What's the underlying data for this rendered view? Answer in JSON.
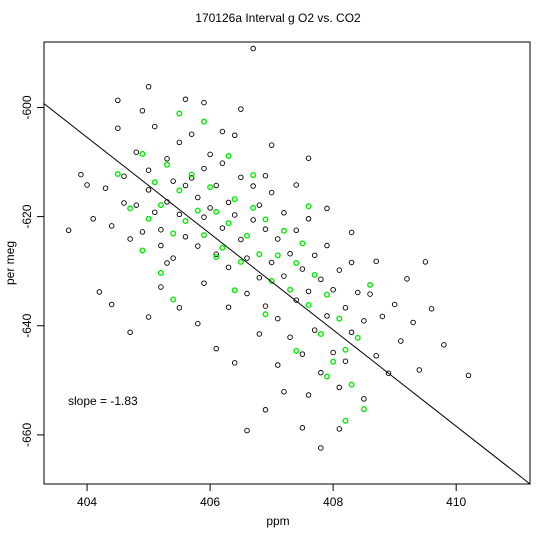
{
  "chart_data": {
    "type": "scatter",
    "title": "170126a   Interval g O2 vs. CO2",
    "xlabel": "ppm",
    "ylabel": "per meg",
    "xlim": [
      403.3,
      411.2
    ],
    "ylim": [
      -669,
      -588
    ],
    "x_ticks": [
      404,
      406,
      408,
      410
    ],
    "y_ticks": [
      -600,
      -620,
      -640,
      -660
    ],
    "annotation": "slope =  -1.83",
    "slope": -1.83,
    "fit_line": {
      "x": [
        403.3,
        411.2
      ],
      "y": [
        -599.3,
        -669.0
      ]
    },
    "colors": {
      "series_a": "#000000",
      "series_b": "#00ee00",
      "fit_line": "#000000",
      "axes": "#000000"
    },
    "grid": false,
    "series": [
      {
        "color": "#000000",
        "points": [
          [
            404.0,
            -614.2
          ],
          [
            404.1,
            -620.4
          ],
          [
            404.3,
            -614.8
          ],
          [
            404.4,
            -621.7
          ],
          [
            404.5,
            -603.8
          ],
          [
            404.6,
            -612.6
          ],
          [
            404.6,
            -617.5
          ],
          [
            404.7,
            -624.1
          ],
          [
            404.8,
            -608.2
          ],
          [
            404.8,
            -617.9
          ],
          [
            404.9,
            -600.6
          ],
          [
            404.9,
            -622.8
          ],
          [
            405.0,
            -611.5
          ],
          [
            405.0,
            -615.1
          ],
          [
            405.1,
            -603.5
          ],
          [
            405.1,
            -619.2
          ],
          [
            405.2,
            -622.4
          ],
          [
            405.2,
            -625.3
          ],
          [
            405.3,
            -609.4
          ],
          [
            405.3,
            -617.3
          ],
          [
            405.4,
            -613.5
          ],
          [
            405.4,
            -627.6
          ],
          [
            405.5,
            -606.4
          ],
          [
            405.5,
            -619.6
          ],
          [
            405.6,
            -614.3
          ],
          [
            405.6,
            -623.7
          ],
          [
            405.7,
            -604.9
          ],
          [
            405.7,
            -612.9
          ],
          [
            405.8,
            -616.5
          ],
          [
            405.8,
            -625.4
          ],
          [
            405.9,
            -611.2
          ],
          [
            405.9,
            -620.1
          ],
          [
            406.0,
            -608.6
          ],
          [
            406.0,
            -618.4
          ],
          [
            406.1,
            -614.3
          ],
          [
            406.1,
            -626.9
          ],
          [
            406.2,
            -610.2
          ],
          [
            406.2,
            -622.1
          ],
          [
            406.3,
            -617.4
          ],
          [
            406.3,
            -629.3
          ],
          [
            406.4,
            -605.1
          ],
          [
            406.4,
            -619.7
          ],
          [
            406.5,
            -612.8
          ],
          [
            406.5,
            -624.2
          ],
          [
            406.6,
            -627.6
          ],
          [
            406.6,
            -634.1
          ],
          [
            406.7,
            -614.4
          ],
          [
            406.7,
            -620.6
          ],
          [
            406.8,
            -617.9
          ],
          [
            406.8,
            -631.2
          ],
          [
            406.9,
            -622.3
          ],
          [
            406.9,
            -636.4
          ],
          [
            407.0,
            -615.6
          ],
          [
            407.0,
            -628.4
          ],
          [
            407.1,
            -624.1
          ],
          [
            407.1,
            -638.7
          ],
          [
            407.2,
            -619.3
          ],
          [
            407.2,
            -630.9
          ],
          [
            407.3,
            -626.8
          ],
          [
            407.3,
            -642.1
          ],
          [
            407.4,
            -622.5
          ],
          [
            407.4,
            -635.3
          ],
          [
            407.5,
            -629.6
          ],
          [
            407.5,
            -645.2
          ],
          [
            407.6,
            -620.4
          ],
          [
            407.6,
            -633.7
          ],
          [
            407.7,
            -627.1
          ],
          [
            407.7,
            -640.8
          ],
          [
            407.8,
            -631.5
          ],
          [
            407.8,
            -648.6
          ],
          [
            407.9,
            -625.3
          ],
          [
            407.9,
            -638.2
          ],
          [
            408.0,
            -633.4
          ],
          [
            408.0,
            -644.9
          ],
          [
            408.1,
            -629.8
          ],
          [
            408.1,
            -651.3
          ],
          [
            408.2,
            -636.7
          ],
          [
            408.2,
            -646.5
          ],
          [
            408.3,
            -628.4
          ],
          [
            408.3,
            -641.2
          ],
          [
            408.4,
            -633.9
          ],
          [
            408.5,
            -639.1
          ],
          [
            408.5,
            -653.4
          ],
          [
            408.6,
            -634.2
          ],
          [
            408.7,
            -645.5
          ],
          [
            408.8,
            -638.3
          ],
          [
            408.9,
            -648.7
          ],
          [
            409.0,
            -636.1
          ],
          [
            409.1,
            -642.8
          ],
          [
            409.3,
            -639.4
          ],
          [
            409.4,
            -648.1
          ],
          [
            409.6,
            -636.9
          ],
          [
            409.8,
            -643.5
          ],
          [
            410.2,
            -649.1
          ],
          [
            403.7,
            -622.5
          ],
          [
            403.9,
            -612.3
          ],
          [
            404.2,
            -633.8
          ],
          [
            404.4,
            -636.1
          ],
          [
            404.7,
            -641.2
          ],
          [
            405.0,
            -638.4
          ],
          [
            405.2,
            -632.9
          ],
          [
            405.5,
            -636.7
          ],
          [
            405.8,
            -639.6
          ],
          [
            406.1,
            -644.2
          ],
          [
            406.4,
            -646.8
          ],
          [
            406.6,
            -659.2
          ],
          [
            406.9,
            -655.4
          ],
          [
            407.2,
            -652.1
          ],
          [
            407.5,
            -658.7
          ],
          [
            407.8,
            -662.4
          ],
          [
            408.1,
            -658.9
          ],
          [
            406.5,
            -600.3
          ],
          [
            406.7,
            -589.2
          ],
          [
            406.2,
            -604.4
          ],
          [
            405.9,
            -599.1
          ],
          [
            404.5,
            -598.7
          ],
          [
            405.0,
            -596.2
          ],
          [
            405.6,
            -598.5
          ],
          [
            406.9,
            -612.5
          ],
          [
            407.4,
            -614.2
          ],
          [
            407.9,
            -618.5
          ],
          [
            408.3,
            -622.9
          ],
          [
            408.7,
            -628.2
          ],
          [
            409.2,
            -631.4
          ],
          [
            409.5,
            -628.3
          ],
          [
            407.0,
            -606.9
          ],
          [
            407.6,
            -609.3
          ],
          [
            405.3,
            -628.5
          ],
          [
            405.9,
            -632.2
          ],
          [
            406.3,
            -636.6
          ],
          [
            406.8,
            -641.5
          ],
          [
            407.1,
            -647.2
          ],
          [
            407.6,
            -652.7
          ]
        ]
      },
      {
        "color": "#00ee00",
        "points": [
          [
            404.5,
            -612.2
          ],
          [
            404.7,
            -618.5
          ],
          [
            404.9,
            -608.5
          ],
          [
            405.0,
            -620.4
          ],
          [
            405.1,
            -613.7
          ],
          [
            405.2,
            -617.9
          ],
          [
            405.3,
            -610.5
          ],
          [
            405.4,
            -623.1
          ],
          [
            405.5,
            -615.2
          ],
          [
            405.6,
            -620.8
          ],
          [
            405.7,
            -612.3
          ],
          [
            405.8,
            -618.9
          ],
          [
            405.9,
            -623.4
          ],
          [
            406.0,
            -614.6
          ],
          [
            406.1,
            -619.1
          ],
          [
            406.2,
            -625.7
          ],
          [
            406.3,
            -621.2
          ],
          [
            406.4,
            -616.8
          ],
          [
            406.5,
            -628.3
          ],
          [
            406.6,
            -623.5
          ],
          [
            406.7,
            -618.4
          ],
          [
            406.8,
            -626.9
          ],
          [
            406.9,
            -620.5
          ],
          [
            407.0,
            -631.8
          ],
          [
            407.1,
            -627.1
          ],
          [
            407.2,
            -622.6
          ],
          [
            407.3,
            -633.4
          ],
          [
            407.4,
            -628.5
          ],
          [
            407.5,
            -624.9
          ],
          [
            407.6,
            -636.2
          ],
          [
            407.7,
            -630.7
          ],
          [
            407.8,
            -641.5
          ],
          [
            407.9,
            -634.3
          ],
          [
            408.0,
            -646.6
          ],
          [
            408.1,
            -638.7
          ],
          [
            408.2,
            -644.4
          ],
          [
            408.3,
            -650.8
          ],
          [
            408.4,
            -642.2
          ],
          [
            408.5,
            -655.3
          ],
          [
            405.9,
            -602.6
          ],
          [
            405.5,
            -601.1
          ],
          [
            406.3,
            -608.9
          ],
          [
            406.7,
            -612.4
          ],
          [
            405.2,
            -630.3
          ],
          [
            404.9,
            -626.2
          ],
          [
            406.4,
            -633.5
          ],
          [
            406.9,
            -637.9
          ],
          [
            407.4,
            -644.6
          ],
          [
            407.9,
            -649.3
          ],
          [
            408.2,
            -657.4
          ],
          [
            406.1,
            -627.4
          ],
          [
            405.4,
            -635.2
          ],
          [
            407.6,
            -618.1
          ],
          [
            408.6,
            -632.5
          ]
        ]
      }
    ]
  }
}
